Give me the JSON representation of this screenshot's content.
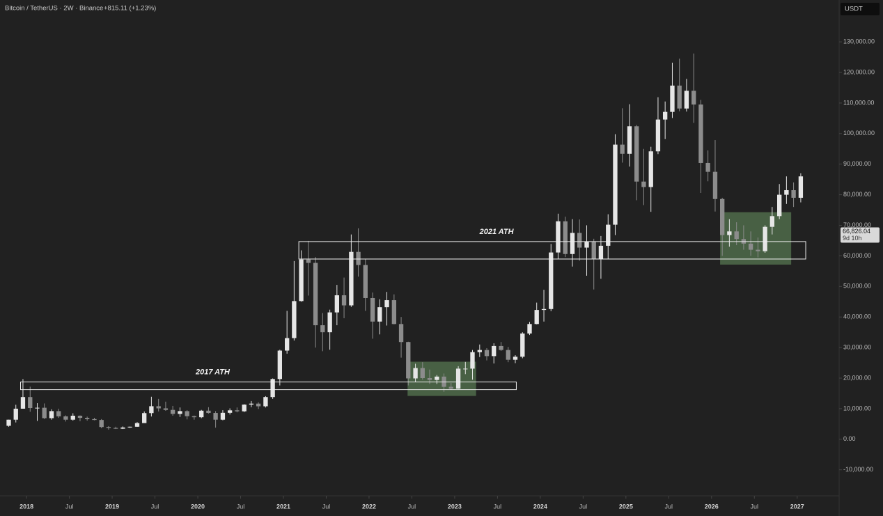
{
  "chart_data": {
    "type": "candlestick",
    "title": "Bitcoin / TetherUS · 2W · Binance",
    "change": "+815.11 (+1.23%)",
    "currency": "USDT",
    "last_price": {
      "value": 66826.04,
      "label": "66,826.04"
    },
    "countdown": "9d 10h",
    "up_color": "#e6e6e6",
    "down_color": "#8c8c8c",
    "xlim": [
      2017.69,
      2027.49
    ],
    "ylim": [
      -18500,
      143700
    ],
    "xticks": [
      {
        "value": 2018,
        "label": "2018"
      },
      {
        "value": 2018.5,
        "label": "Jul"
      },
      {
        "value": 2019,
        "label": "2019"
      },
      {
        "value": 2019.5,
        "label": "Jul"
      },
      {
        "value": 2020,
        "label": "2020"
      },
      {
        "value": 2020.5,
        "label": "Jul"
      },
      {
        "value": 2021,
        "label": "2021"
      },
      {
        "value": 2021.5,
        "label": "Jul"
      },
      {
        "value": 2022,
        "label": "2022"
      },
      {
        "value": 2022.5,
        "label": "Jul"
      },
      {
        "value": 2023,
        "label": "2023"
      },
      {
        "value": 2023.5,
        "label": "Jul"
      },
      {
        "value": 2024,
        "label": "2024"
      },
      {
        "value": 2024.5,
        "label": "Jul"
      },
      {
        "value": 2025,
        "label": "2025"
      },
      {
        "value": 2025.5,
        "label": "Jul"
      },
      {
        "value": 2026,
        "label": "2026"
      },
      {
        "value": 2026.5,
        "label": "Jul"
      },
      {
        "value": 2027,
        "label": "2027"
      }
    ],
    "yticks": [
      {
        "value": -10000,
        "label": "-10,000.00"
      },
      {
        "value": 0,
        "label": "0.00"
      },
      {
        "value": 10000,
        "label": "10,000.00"
      },
      {
        "value": 20000,
        "label": "20,000.00"
      },
      {
        "value": 30000,
        "label": "30,000.00"
      },
      {
        "value": 40000,
        "label": "40,000.00"
      },
      {
        "value": 50000,
        "label": "50,000.00"
      },
      {
        "value": 60000,
        "label": "60,000.00"
      },
      {
        "value": 70000,
        "label": "70,000.00"
      },
      {
        "value": 80000,
        "label": "80,000.00"
      },
      {
        "value": 90000,
        "label": "90,000.00"
      },
      {
        "value": 100000,
        "label": "100,000.00"
      },
      {
        "value": 110000,
        "label": "110,000.00"
      },
      {
        "value": 120000,
        "label": "120,000.00"
      },
      {
        "value": 130000,
        "label": "130,000.00"
      }
    ],
    "x": [
      2017.792,
      2017.875,
      2017.958,
      2018.042,
      2018.125,
      2018.208,
      2018.292,
      2018.375,
      2018.458,
      2018.542,
      2018.625,
      2018.708,
      2018.792,
      2018.875,
      2018.958,
      2019.042,
      2019.125,
      2019.208,
      2019.292,
      2019.375,
      2019.458,
      2019.542,
      2019.625,
      2019.708,
      2019.792,
      2019.875,
      2019.958,
      2020.042,
      2020.125,
      2020.208,
      2020.292,
      2020.375,
      2020.458,
      2020.542,
      2020.625,
      2020.708,
      2020.792,
      2020.875,
      2020.958,
      2021.042,
      2021.125,
      2021.208,
      2021.292,
      2021.375,
      2021.458,
      2021.542,
      2021.625,
      2021.708,
      2021.792,
      2021.875,
      2021.958,
      2022.042,
      2022.125,
      2022.208,
      2022.292,
      2022.375,
      2022.458,
      2022.542,
      2022.625,
      2022.708,
      2022.792,
      2022.875,
      2022.958,
      2023.042,
      2023.125,
      2023.208,
      2023.292,
      2023.375,
      2023.458,
      2023.542,
      2023.625,
      2023.708,
      2023.792,
      2023.875,
      2023.958,
      2024.042,
      2024.125,
      2024.208,
      2024.292,
      2024.375,
      2024.458,
      2024.542,
      2024.625,
      2024.708,
      2024.792,
      2024.875,
      2024.958,
      2025.042,
      2025.125,
      2025.208,
      2025.292,
      2025.375,
      2025.458,
      2025.542,
      2025.625,
      2025.708,
      2025.792,
      2025.875,
      2025.958,
      2026.042,
      2026.125,
      2026.208,
      2026.292,
      2026.375,
      2026.458,
      2026.542,
      2026.625,
      2026.708,
      2026.792,
      2026.875,
      2026.958,
      2027.042
    ],
    "ohlc": [
      [
        4400,
        6400,
        4100,
        6400
      ],
      [
        6400,
        11300,
        5500,
        10000
      ],
      [
        10000,
        19700,
        10000,
        13800
      ],
      [
        13800,
        17200,
        9000,
        10200
      ],
      [
        10200,
        11800,
        6000,
        10300
      ],
      [
        10300,
        11700,
        6600,
        6900
      ],
      [
        6900,
        9800,
        6400,
        9200
      ],
      [
        9200,
        10000,
        7000,
        7500
      ],
      [
        7500,
        7800,
        5800,
        6400
      ],
      [
        6400,
        8500,
        6100,
        7700
      ],
      [
        7700,
        7800,
        5900,
        7000
      ],
      [
        7000,
        7400,
        6100,
        6600
      ],
      [
        6600,
        7000,
        6200,
        6300
      ],
      [
        6300,
        6600,
        3600,
        4000
      ],
      [
        4000,
        4300,
        3150,
        3700
      ],
      [
        3700,
        4100,
        3350,
        3450
      ],
      [
        3450,
        4200,
        3350,
        3850
      ],
      [
        3850,
        4150,
        3700,
        4100
      ],
      [
        4100,
        5600,
        4050,
        5300
      ],
      [
        5300,
        9100,
        5300,
        8550
      ],
      [
        8550,
        13900,
        7450,
        10800
      ],
      [
        10800,
        13200,
        9100,
        10100
      ],
      [
        10100,
        12300,
        9300,
        9600
      ],
      [
        9600,
        10900,
        7700,
        8300
      ],
      [
        8300,
        10400,
        7300,
        9200
      ],
      [
        9200,
        9500,
        6500,
        7550
      ],
      [
        7550,
        7750,
        6400,
        7200
      ],
      [
        7200,
        9600,
        6900,
        9350
      ],
      [
        9350,
        10500,
        8400,
        8600
      ],
      [
        8600,
        9200,
        3800,
        6400
      ],
      [
        6400,
        9500,
        6200,
        8650
      ],
      [
        8650,
        10100,
        8100,
        9450
      ],
      [
        9450,
        10400,
        8800,
        9140
      ],
      [
        9140,
        11450,
        8900,
        11350
      ],
      [
        11350,
        12500,
        10500,
        11650
      ],
      [
        11650,
        12100,
        9900,
        10780
      ],
      [
        10780,
        14100,
        10400,
        13800
      ],
      [
        13800,
        19900,
        13200,
        19700
      ],
      [
        19700,
        29300,
        17600,
        29000
      ],
      [
        29000,
        42000,
        28000,
        33100
      ],
      [
        33100,
        58300,
        32300,
        45200
      ],
      [
        45200,
        61800,
        45000,
        58800
      ],
      [
        58800,
        64900,
        47000,
        57700
      ],
      [
        57700,
        59600,
        30000,
        37300
      ],
      [
        37300,
        41300,
        28800,
        35000
      ],
      [
        35000,
        42400,
        29300,
        41500
      ],
      [
        41500,
        50500,
        37300,
        47100
      ],
      [
        47100,
        52900,
        39600,
        43800
      ],
      [
        43800,
        67000,
        43300,
        61300
      ],
      [
        61300,
        69000,
        53200,
        57000
      ],
      [
        57000,
        59000,
        42000,
        46200
      ],
      [
        46200,
        48000,
        32900,
        38500
      ],
      [
        38500,
        45800,
        34300,
        43200
      ],
      [
        43200,
        48200,
        37200,
        45500
      ],
      [
        45500,
        47400,
        37600,
        37700
      ],
      [
        37700,
        40000,
        26700,
        31800
      ],
      [
        31800,
        31900,
        17600,
        19900
      ],
      [
        19900,
        24700,
        18800,
        23300
      ],
      [
        23300,
        25200,
        19500,
        20000
      ],
      [
        20000,
        22800,
        18100,
        19400
      ],
      [
        19400,
        21000,
        18100,
        20500
      ],
      [
        20500,
        21500,
        15500,
        17150
      ],
      [
        17150,
        18400,
        16250,
        16550
      ],
      [
        16550,
        23900,
        16500,
        23100
      ],
      [
        23100,
        25300,
        21300,
        23100
      ],
      [
        23100,
        29200,
        19500,
        28500
      ],
      [
        28500,
        31000,
        26900,
        29200
      ],
      [
        29200,
        29800,
        25800,
        27200
      ],
      [
        27200,
        31400,
        24800,
        30500
      ],
      [
        30500,
        31800,
        28900,
        29200
      ],
      [
        29200,
        30200,
        25200,
        26000
      ],
      [
        26000,
        27500,
        24900,
        27000
      ],
      [
        27000,
        35000,
        26500,
        34600
      ],
      [
        34600,
        38400,
        34100,
        37700
      ],
      [
        37700,
        44700,
        37600,
        42300
      ],
      [
        42300,
        48900,
        38500,
        42600
      ],
      [
        42600,
        63900,
        41900,
        61100
      ],
      [
        61100,
        73800,
        59000,
        71300
      ],
      [
        71300,
        72800,
        59600,
        60600
      ],
      [
        60600,
        72000,
        56500,
        67500
      ],
      [
        67500,
        71900,
        58400,
        62700
      ],
      [
        62700,
        70000,
        53500,
        64600
      ],
      [
        64600,
        65600,
        49000,
        58900
      ],
      [
        58900,
        66500,
        52500,
        63300
      ],
      [
        63300,
        73600,
        58900,
        70200
      ],
      [
        70200,
        99800,
        66800,
        96400
      ],
      [
        96400,
        108300,
        90500,
        93400
      ],
      [
        93400,
        109600,
        89200,
        102400
      ],
      [
        102400,
        102800,
        78200,
        84300
      ],
      [
        84300,
        95000,
        76600,
        82500
      ],
      [
        82500,
        95700,
        74400,
        94200
      ],
      [
        94200,
        111900,
        93300,
        104600
      ],
      [
        104600,
        110500,
        98200,
        107100
      ],
      [
        107100,
        123200,
        105100,
        115700
      ],
      [
        115700,
        124500,
        107300,
        108200
      ],
      [
        108200,
        117900,
        107200,
        114000
      ],
      [
        114000,
        126200,
        103500,
        109500
      ],
      [
        109500,
        111000,
        80600,
        90400
      ],
      [
        90400,
        94500,
        84400,
        87500
      ],
      [
        87500,
        97900,
        74500,
        78600
      ],
      [
        78600,
        79000,
        60000,
        66800
      ],
      [
        66800,
        72000,
        63000,
        68000
      ],
      [
        68000,
        71000,
        63500,
        65500
      ],
      [
        65500,
        70000,
        62000,
        64000
      ],
      [
        64000,
        68000,
        60000,
        62000
      ],
      [
        62000,
        66000,
        59500,
        61500
      ],
      [
        61500,
        70000,
        61000,
        69500
      ],
      [
        69500,
        76000,
        67000,
        73000
      ],
      [
        73000,
        83500,
        72000,
        80000
      ],
      [
        80000,
        86000,
        77000,
        81500
      ],
      [
        81500,
        84000,
        76000,
        79000
      ],
      [
        79000,
        87000,
        77500,
        86000
      ]
    ],
    "annotations": [
      {
        "label": "2017 ATH",
        "x0": 2017.93,
        "x1": 2023.72,
        "y0": 16220,
        "y1": 18740
      },
      {
        "label": "2021 ATH",
        "x0": 2021.18,
        "x1": 2027.1,
        "y0": 58960,
        "y1": 64670
      }
    ],
    "zones": [
      {
        "x0": 2022.45,
        "x1": 2023.25,
        "y0": 14170,
        "y1": 25370,
        "color": "#4f6b4a"
      },
      {
        "x0": 2026.1,
        "x1": 2026.93,
        "y0": 57130,
        "y1": 74270,
        "color": "#4f6b4a"
      }
    ]
  }
}
